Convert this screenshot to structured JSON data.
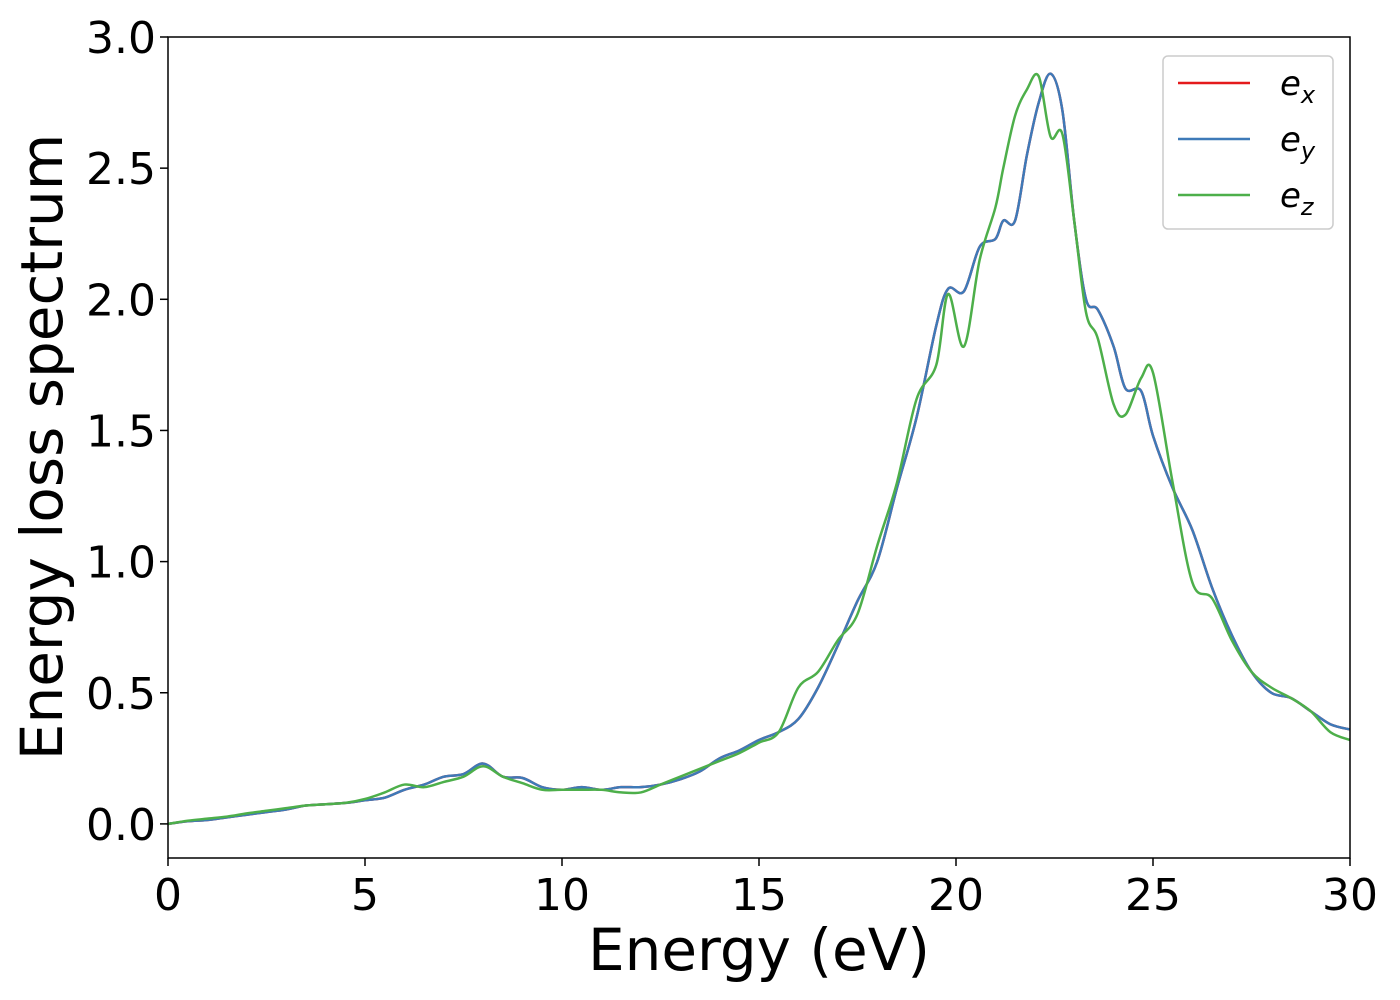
{
  "chart_data": {
    "type": "line",
    "title": "",
    "xlabel": "Energy (eV)",
    "ylabel": "Energy loss spectrum",
    "xlim": [
      0,
      30
    ],
    "ylim": [
      -0.13,
      3.0
    ],
    "xticks": [
      "0",
      "5",
      "10",
      "15",
      "20",
      "25",
      "30"
    ],
    "yticks": [
      "0.0",
      "0.5",
      "1.0",
      "1.5",
      "2.0",
      "2.5",
      "3.0"
    ],
    "grid": false,
    "legend_position": "top-right",
    "series": [
      {
        "name": "e_x",
        "label_base": "e",
        "label_sub": "x",
        "color": "#e41a1c",
        "x": [
          0,
          0.5,
          1,
          1.5,
          2,
          2.5,
          3,
          3.5,
          4,
          4.5,
          5,
          5.5,
          6,
          6.5,
          7,
          7.5,
          8,
          8.5,
          9,
          9.5,
          10,
          10.5,
          11,
          11.5,
          12,
          12.5,
          13,
          13.5,
          14,
          14.5,
          15,
          15.5,
          16,
          16.5,
          17,
          17.5,
          18,
          18.5,
          19,
          19.5,
          19.8,
          20.2,
          20.6,
          21,
          21.2,
          21.5,
          21.8,
          22.1,
          22.4,
          22.7,
          23,
          23.3,
          23.6,
          24,
          24.3,
          24.7,
          25,
          25.5,
          26,
          26.5,
          27,
          27.5,
          28,
          28.5,
          29,
          29.5,
          30
        ],
        "y": [
          0,
          0.01,
          0.015,
          0.025,
          0.035,
          0.045,
          0.055,
          0.07,
          0.075,
          0.08,
          0.09,
          0.1,
          0.13,
          0.15,
          0.18,
          0.19,
          0.23,
          0.18,
          0.175,
          0.14,
          0.13,
          0.14,
          0.13,
          0.14,
          0.14,
          0.15,
          0.17,
          0.2,
          0.25,
          0.28,
          0.32,
          0.35,
          0.4,
          0.52,
          0.68,
          0.85,
          1.0,
          1.28,
          1.55,
          1.9,
          2.04,
          2.03,
          2.2,
          2.23,
          2.3,
          2.3,
          2.55,
          2.75,
          2.86,
          2.72,
          2.3,
          2.0,
          1.96,
          1.82,
          1.66,
          1.65,
          1.48,
          1.28,
          1.12,
          0.9,
          0.72,
          0.58,
          0.5,
          0.48,
          0.43,
          0.38,
          0.36
        ]
      },
      {
        "name": "e_y",
        "label_base": "e",
        "label_sub": "y",
        "color": "#3e7ab8",
        "x": [
          0,
          0.5,
          1,
          1.5,
          2,
          2.5,
          3,
          3.5,
          4,
          4.5,
          5,
          5.5,
          6,
          6.5,
          7,
          7.5,
          8,
          8.5,
          9,
          9.5,
          10,
          10.5,
          11,
          11.5,
          12,
          12.5,
          13,
          13.5,
          14,
          14.5,
          15,
          15.5,
          16,
          16.5,
          17,
          17.5,
          18,
          18.5,
          19,
          19.5,
          19.8,
          20.2,
          20.6,
          21,
          21.2,
          21.5,
          21.8,
          22.1,
          22.4,
          22.7,
          23,
          23.3,
          23.6,
          24,
          24.3,
          24.7,
          25,
          25.5,
          26,
          26.5,
          27,
          27.5,
          28,
          28.5,
          29,
          29.5,
          30
        ],
        "y": [
          0,
          0.01,
          0.015,
          0.025,
          0.035,
          0.045,
          0.055,
          0.07,
          0.075,
          0.08,
          0.09,
          0.1,
          0.13,
          0.15,
          0.18,
          0.19,
          0.23,
          0.18,
          0.175,
          0.14,
          0.13,
          0.14,
          0.13,
          0.14,
          0.14,
          0.15,
          0.17,
          0.2,
          0.25,
          0.28,
          0.32,
          0.35,
          0.4,
          0.52,
          0.68,
          0.85,
          1.0,
          1.28,
          1.55,
          1.9,
          2.04,
          2.03,
          2.2,
          2.23,
          2.3,
          2.3,
          2.55,
          2.75,
          2.86,
          2.72,
          2.3,
          2.0,
          1.96,
          1.82,
          1.66,
          1.65,
          1.48,
          1.28,
          1.12,
          0.9,
          0.72,
          0.58,
          0.5,
          0.48,
          0.43,
          0.38,
          0.36
        ]
      },
      {
        "name": "e_z",
        "label_base": "e",
        "label_sub": "z",
        "color": "#4daf4a",
        "x": [
          0,
          0.5,
          1,
          1.5,
          2,
          2.5,
          3,
          3.5,
          4,
          4.5,
          5,
          5.5,
          6,
          6.5,
          7,
          7.5,
          8,
          8.5,
          9,
          9.5,
          10,
          10.5,
          11,
          11.5,
          12,
          12.5,
          13,
          13.5,
          14,
          14.5,
          15,
          15.5,
          16,
          16.5,
          17,
          17.5,
          18,
          18.5,
          19,
          19.5,
          19.8,
          20.2,
          20.6,
          21,
          21.2,
          21.5,
          21.8,
          22.1,
          22.4,
          22.7,
          23,
          23.3,
          23.6,
          24,
          24.3,
          24.7,
          25,
          25.5,
          26,
          26.5,
          27,
          27.5,
          28,
          28.5,
          29,
          29.5,
          30
        ],
        "y": [
          0,
          0.012,
          0.02,
          0.028,
          0.04,
          0.05,
          0.06,
          0.07,
          0.075,
          0.08,
          0.095,
          0.12,
          0.15,
          0.14,
          0.16,
          0.18,
          0.22,
          0.18,
          0.155,
          0.13,
          0.13,
          0.13,
          0.13,
          0.12,
          0.12,
          0.15,
          0.18,
          0.21,
          0.24,
          0.27,
          0.31,
          0.35,
          0.52,
          0.58,
          0.7,
          0.8,
          1.06,
          1.3,
          1.62,
          1.75,
          2.02,
          1.82,
          2.15,
          2.35,
          2.5,
          2.7,
          2.8,
          2.85,
          2.62,
          2.63,
          2.3,
          1.95,
          1.85,
          1.6,
          1.56,
          1.7,
          1.72,
          1.3,
          0.92,
          0.86,
          0.7,
          0.58,
          0.52,
          0.48,
          0.43,
          0.35,
          0.32
        ]
      }
    ]
  }
}
